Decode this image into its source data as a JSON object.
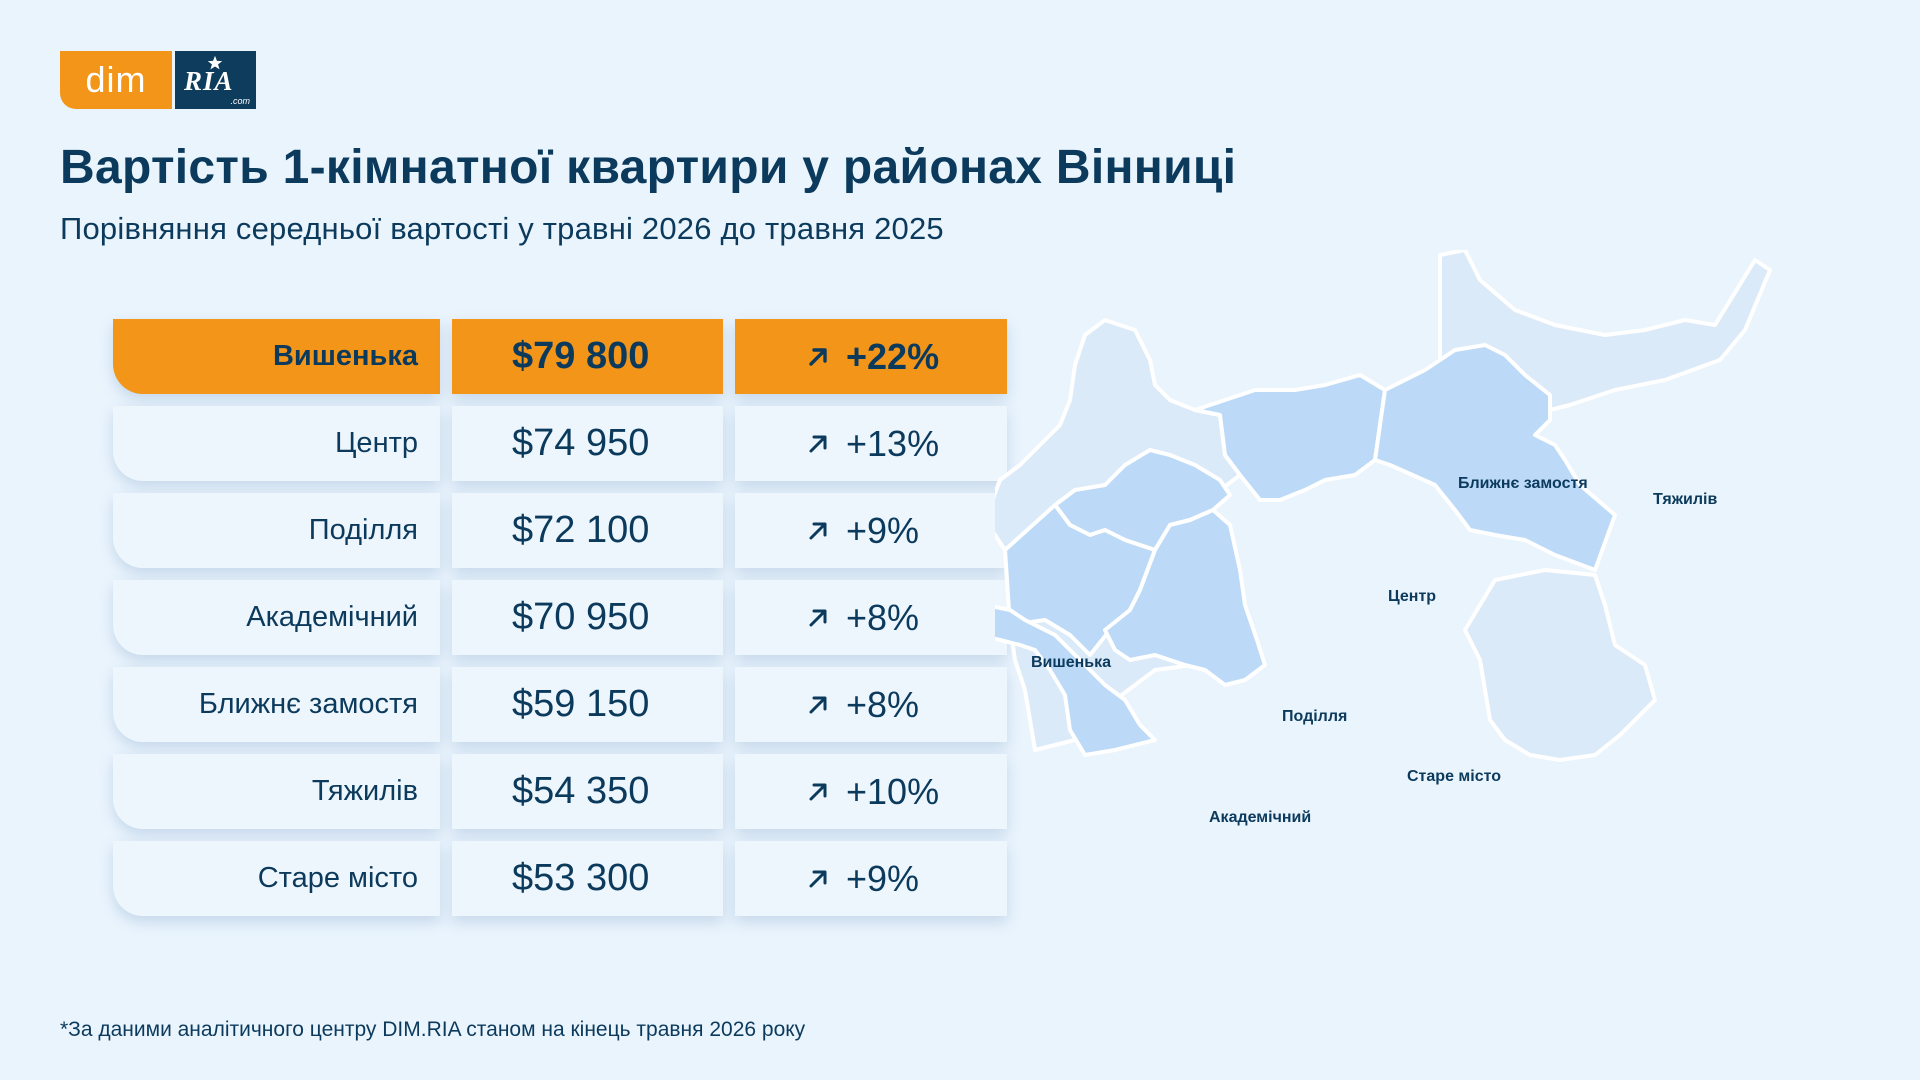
{
  "logo": {
    "dim": "dim",
    "ria": "RIA",
    "com": ".com"
  },
  "title": "Вартість 1-кімнатної квартири у районах Вінниці",
  "subtitle": "Порівняння середньої вартості у травні 2026 до травня 2025",
  "colors": {
    "accent": "#f39519",
    "dark": "#0b3a5c",
    "background": "#eaf4fd",
    "map_light": "#dbeaf9",
    "map_mid": "#bcdaf7"
  },
  "rows": [
    {
      "district": "Вишенька",
      "price": "$79 800",
      "change": "+22%",
      "highlight": true
    },
    {
      "district": "Центр",
      "price": "$74 950",
      "change": "+13%"
    },
    {
      "district": "Поділля",
      "price": "$72 100",
      "change": "+9%"
    },
    {
      "district": "Академічний",
      "price": "$70 950",
      "change": "+8%"
    },
    {
      "district": "Ближнє замостя",
      "price": "$59 150",
      "change": "+8%"
    },
    {
      "district": "Тяжилів",
      "price": "$54 350",
      "change": "+10%"
    },
    {
      "district": "Старе місто",
      "price": "$53 300",
      "change": "+9%"
    }
  ],
  "map_labels": {
    "vyshenka": "Вишенька",
    "tsentr": "Центр",
    "podillia": "Поділля",
    "akademichnyi": "Академічний",
    "blyzhne": "Ближнє замостя",
    "tiazhyliv": "Тяжилів",
    "stare": "Старе місто"
  },
  "footnote": "*За даними аналітичного центру DIM.RIA станом на кінець травня 2026 року"
}
